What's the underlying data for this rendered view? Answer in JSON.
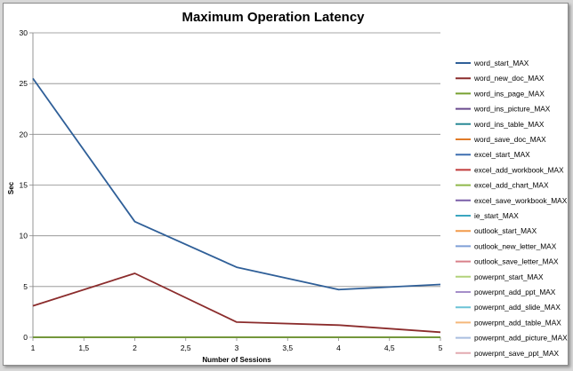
{
  "chart_data": {
    "type": "line",
    "title": "Maximum Operation Latency",
    "xlabel": "Number of Sessions",
    "ylabel": "Sec",
    "xlim": [
      1,
      5
    ],
    "ylim": [
      0,
      30
    ],
    "x_ticks": [
      "1",
      "1,5",
      "2",
      "2,5",
      "3",
      "3,5",
      "4",
      "4,5",
      "5"
    ],
    "y_ticks": [
      "0",
      "5",
      "10",
      "15",
      "20",
      "25",
      "30"
    ],
    "grid": "horizontal",
    "legend_position": "right",
    "x": [
      1,
      2,
      3,
      4,
      5
    ],
    "series": [
      {
        "name": "word_start_MAX",
        "color": "#2f5f98",
        "values": [
          25.5,
          11.4,
          6.9,
          4.7,
          5.2
        ]
      },
      {
        "name": "word_new_doc_MAX",
        "color": "#8b2c2c",
        "values": [
          3.1,
          6.3,
          1.5,
          1.2,
          0.5
        ]
      },
      {
        "name": "word_ins_page_MAX",
        "color": "#77a030",
        "values": [
          0,
          0,
          0,
          0,
          0
        ]
      },
      {
        "name": "word_ins_picture_MAX",
        "color": "#6a4a8e",
        "values": [
          0,
          0,
          0,
          0,
          0
        ]
      },
      {
        "name": "word_ins_table_MAX",
        "color": "#2a8a96",
        "values": [
          0,
          0,
          0,
          0,
          0
        ]
      },
      {
        "name": "word_save_doc_MAX",
        "color": "#e07b28",
        "values": [
          0,
          0,
          0,
          0,
          0
        ]
      },
      {
        "name": "excel_start_MAX",
        "color": "#3e6fb0",
        "values": [
          0,
          0,
          0,
          0,
          0
        ]
      },
      {
        "name": "excel_add_workbook_MAX",
        "color": "#c03a3a",
        "values": [
          0,
          0,
          0,
          0,
          0
        ]
      },
      {
        "name": "excel_add_chart_MAX",
        "color": "#8fb84a",
        "values": [
          0,
          0,
          0,
          0,
          0
        ]
      },
      {
        "name": "excel_save_workbook_MAX",
        "color": "#7a5ea8",
        "values": [
          0,
          0,
          0,
          0,
          0
        ]
      },
      {
        "name": "ie_start_MAX",
        "color": "#3aa6c0",
        "values": [
          0,
          0,
          0,
          0,
          0
        ]
      },
      {
        "name": "outlook_start_MAX",
        "color": "#f29a4a",
        "values": [
          0,
          0,
          0,
          0,
          0
        ]
      },
      {
        "name": "outlook_new_letter_MAX",
        "color": "#7f9fd6",
        "values": [
          0,
          0,
          0,
          0,
          0
        ]
      },
      {
        "name": "outlook_save_letter_MAX",
        "color": "#d9808a",
        "values": [
          0,
          0,
          0,
          0,
          0
        ]
      },
      {
        "name": "powerpnt_start_MAX",
        "color": "#b2d27a",
        "values": [
          0,
          0,
          0,
          0,
          0
        ]
      },
      {
        "name": "powerpnt_add_ppt_MAX",
        "color": "#a58ec9",
        "values": [
          0,
          0,
          0,
          0,
          0
        ]
      },
      {
        "name": "powerpnt_add_slide_MAX",
        "color": "#6cc3d6",
        "values": [
          0,
          0,
          0,
          0,
          0
        ]
      },
      {
        "name": "powerpnt_add_table_MAX",
        "color": "#f5b87a",
        "values": [
          0,
          0,
          0,
          0,
          0
        ]
      },
      {
        "name": "powerpnt_add_picture_MAX",
        "color": "#a9bedf",
        "values": [
          0,
          0,
          0,
          0,
          0
        ]
      },
      {
        "name": "powerpnt_save_ppt_MAX",
        "color": "#e2aab0",
        "values": [
          0,
          0,
          0,
          0,
          0
        ]
      }
    ]
  }
}
